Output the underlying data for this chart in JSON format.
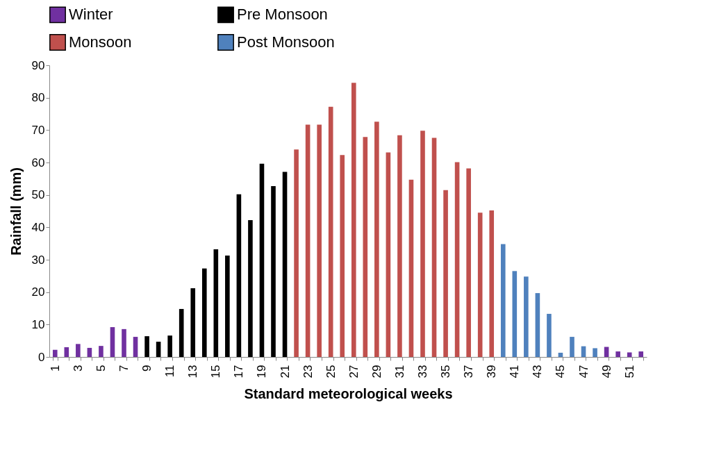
{
  "chart_data": {
    "type": "bar",
    "xlabel": "Standard meteorological weeks",
    "ylabel": "Rainfall (mm)",
    "categories": [
      "1",
      null,
      "3",
      null,
      "5",
      null,
      "7",
      null,
      "9",
      null,
      "11",
      null,
      "13",
      null,
      "15",
      null,
      "17",
      null,
      "19",
      null,
      "21",
      null,
      "23",
      null,
      "25",
      null,
      "27",
      null,
      "29",
      null,
      "31",
      null,
      "33",
      null,
      "35",
      null,
      "37",
      null,
      "39",
      null,
      "41",
      null,
      "43",
      null,
      "45",
      null,
      "47",
      null,
      "49",
      null,
      "51",
      null
    ],
    "series": [
      {
        "name": "Winter",
        "color": "#7030a0",
        "values": [
          2.2,
          3,
          4,
          2.8,
          3.4,
          9.2,
          8.6,
          6.2,
          null,
          null,
          null,
          null,
          null,
          null,
          null,
          null,
          null,
          null,
          null,
          null,
          null,
          null,
          null,
          null,
          null,
          null,
          null,
          null,
          null,
          null,
          null,
          null,
          null,
          null,
          null,
          null,
          null,
          null,
          null,
          null,
          null,
          null,
          null,
          null,
          null,
          null,
          null,
          null,
          3.1,
          1.7,
          1.4,
          1.7
        ]
      },
      {
        "name": "Pre Monsoon",
        "color": "#000000",
        "values": [
          null,
          null,
          null,
          null,
          null,
          null,
          null,
          null,
          6.4,
          4.7,
          6.6,
          14.8,
          21.2,
          27.3,
          33.2,
          31.3,
          50.2,
          42.2,
          59.6,
          52.7,
          57.1,
          null,
          null,
          null,
          null,
          null,
          null,
          null,
          null,
          null,
          null,
          null,
          null,
          null,
          null,
          null,
          null,
          null,
          null,
          null,
          null,
          null,
          null,
          null,
          null,
          null,
          null,
          null,
          null,
          null,
          null,
          null
        ]
      },
      {
        "name": "Monsoon",
        "color": "#c0504d",
        "values": [
          null,
          null,
          null,
          null,
          null,
          null,
          null,
          null,
          null,
          null,
          null,
          null,
          null,
          null,
          null,
          null,
          null,
          null,
          null,
          null,
          null,
          64,
          71.7,
          71.7,
          77.2,
          62.3,
          84.6,
          67.9,
          72.6,
          63.1,
          68.4,
          54.7,
          69.8,
          67.6,
          51.5,
          60.1,
          58.2,
          44.5,
          45.2,
          null,
          null,
          null,
          null,
          null,
          null,
          null,
          null,
          null,
          null,
          null,
          null,
          null
        ]
      },
      {
        "name": "Post Monsoon",
        "color": "#4f81bd",
        "values": [
          null,
          null,
          null,
          null,
          null,
          null,
          null,
          null,
          null,
          null,
          null,
          null,
          null,
          null,
          null,
          null,
          null,
          null,
          null,
          null,
          null,
          null,
          null,
          null,
          null,
          null,
          null,
          null,
          null,
          null,
          null,
          null,
          null,
          null,
          null,
          null,
          null,
          null,
          null,
          34.8,
          26.5,
          24.8,
          19.7,
          13.3,
          1.3,
          6.2,
          3.3,
          2.7,
          null,
          null,
          null,
          null
        ]
      }
    ],
    "ylim": [
      0,
      90
    ],
    "yticks": [
      0,
      10,
      20,
      30,
      40,
      50,
      60,
      70,
      80,
      90
    ],
    "grid": false,
    "legend": "top"
  }
}
